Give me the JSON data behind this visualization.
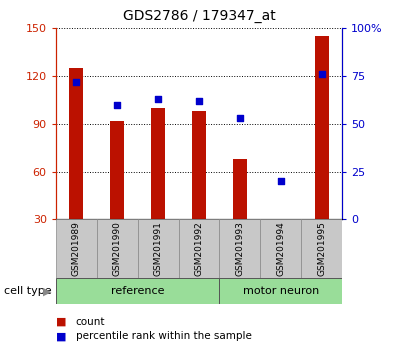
{
  "title": "GDS2786 / 179347_at",
  "samples": [
    "GSM201989",
    "GSM201990",
    "GSM201991",
    "GSM201992",
    "GSM201993",
    "GSM201994",
    "GSM201995"
  ],
  "counts": [
    125,
    92,
    100,
    98,
    68,
    29,
    145
  ],
  "percentiles": [
    72,
    60,
    63,
    62,
    53,
    20,
    76
  ],
  "bar_color": "#BB1100",
  "dot_color": "#0000CC",
  "ylim_left": [
    30,
    150
  ],
  "ylim_right": [
    0,
    100
  ],
  "yticks_left": [
    30,
    60,
    90,
    120,
    150
  ],
  "ytick_labels_left": [
    "30",
    "60",
    "90",
    "120",
    "150"
  ],
  "yticks_right": [
    0,
    25,
    50,
    75,
    100
  ],
  "ytick_labels_right": [
    "0",
    "25",
    "50",
    "75",
    "100%"
  ],
  "ylabel_left_color": "#CC2200",
  "ylabel_right_color": "#0000CC",
  "cell_type_label": "cell type",
  "legend_count": "count",
  "legend_percentile": "percentile rank within the sample",
  "bg_xtick": "#c8c8c8",
  "bg_group": "#99dd99",
  "ref_label": "reference",
  "motor_label": "motor neuron",
  "ref_count": 4,
  "motor_count": 3
}
